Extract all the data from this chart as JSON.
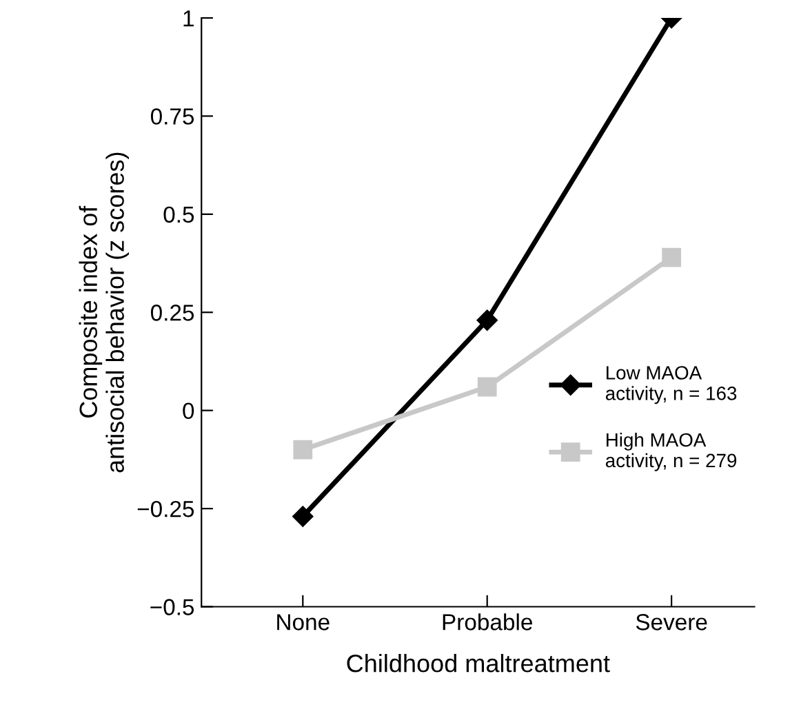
{
  "chart_data": {
    "type": "line",
    "xlabel": "Childhood maltreatment",
    "ylabel": "Composite index of\nantisocial behavior (z scores)",
    "categories": [
      "None",
      "Probable",
      "Severe"
    ],
    "series": [
      {
        "name": "Low MAOA\nactivity, n = 163",
        "color": "#000000",
        "marker": "diamond",
        "values": [
          -0.27,
          0.23,
          1.0
        ]
      },
      {
        "name": "High MAOA\nactivity, n = 279",
        "color": "#c8c8c8",
        "marker": "square",
        "values": [
          -0.1,
          0.06,
          0.39
        ]
      }
    ],
    "ylim": [
      -0.5,
      1.0
    ],
    "yticks": [
      {
        "value": -0.5,
        "label": "−0.5"
      },
      {
        "value": -0.25,
        "label": "−0.25"
      },
      0,
      0.25,
      0.5,
      0.75,
      1
    ],
    "legend": "center right",
    "grid": false,
    "line_style": "solid"
  }
}
